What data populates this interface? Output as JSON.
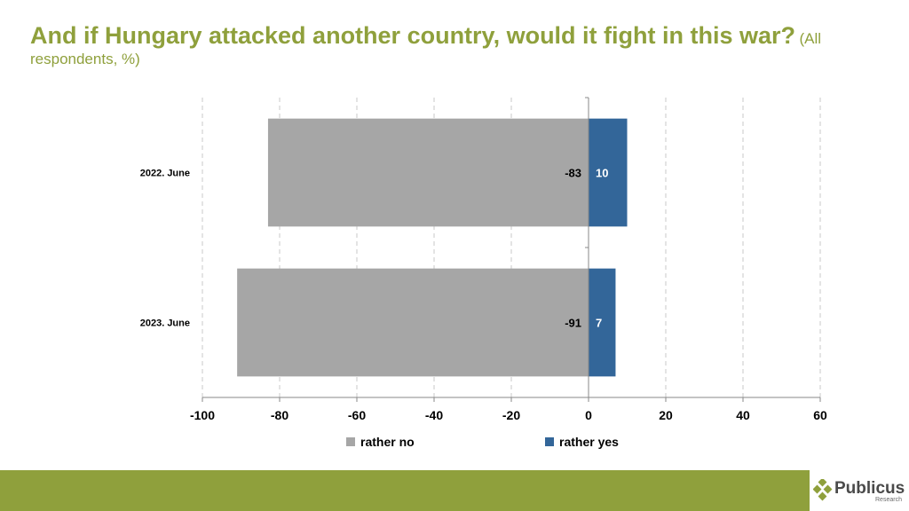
{
  "title": {
    "main": "And if Hungary attacked another country, would it fight in this war?",
    "sub": "(All respondents, %)"
  },
  "chart_data": {
    "type": "bar",
    "orientation": "horizontal",
    "stacked": true,
    "categories": [
      "2022. June",
      "2023. June"
    ],
    "series": [
      {
        "name": "rather no",
        "values": [
          -83,
          -91
        ],
        "color": "#a6a6a6"
      },
      {
        "name": "rather yes",
        "values": [
          10,
          7
        ],
        "color": "#336699"
      }
    ],
    "xlim": [
      -100,
      60
    ],
    "xticks": [
      -100,
      -80,
      -60,
      -40,
      -20,
      0,
      20,
      40,
      60
    ],
    "grid": "vertical dashed",
    "legend_position": "bottom",
    "data_labels": true
  },
  "footer": {
    "bar_color": "#8fa03c",
    "logo_name": "Publicus",
    "logo_sub": "Research"
  }
}
